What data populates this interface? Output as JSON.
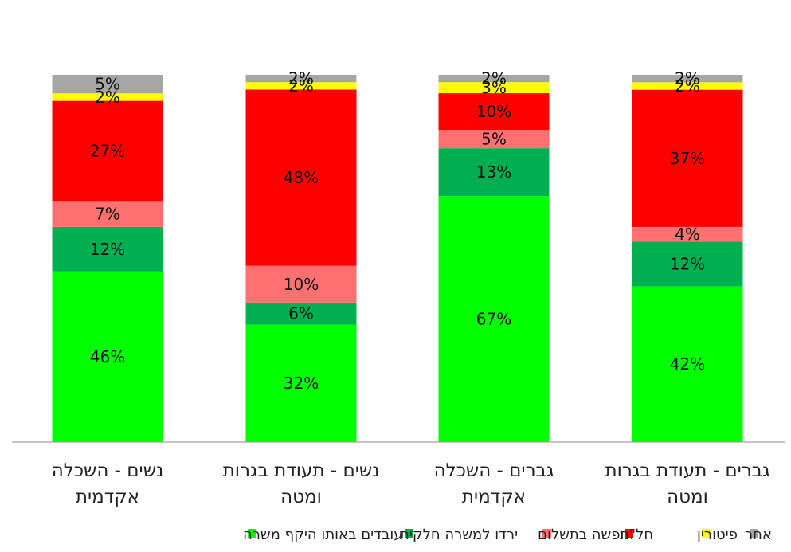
{
  "chart_data": {
    "type": "bar",
    "stacked": true,
    "direction": "rtl",
    "ylim": [
      0,
      100
    ],
    "grid": false,
    "legend_position": "bottom",
    "categories": [
      [
        "גברים - תעודת בגרות",
        "ומטה"
      ],
      [
        "גברים - השכלה",
        "אקדמית"
      ],
      [
        "נשים - תעודת בגרות",
        "ומטה"
      ],
      [
        "נשים - השכלה",
        "אקדמית"
      ]
    ],
    "series": [
      {
        "name": "עובדים באותו היקף משרה",
        "color": "#00ff00",
        "values": [
          42,
          67,
          32,
          46
        ],
        "labels": [
          "42%",
          "67%",
          "32%",
          "46%"
        ]
      },
      {
        "name": "ירדו למשרה חלקית",
        "color": "#00b050",
        "values": [
          12,
          13,
          6,
          12
        ],
        "labels": [
          "12%",
          "13%",
          "6%",
          "12%"
        ]
      },
      {
        "name": "חופשה בתשלום",
        "color": "#ff7070",
        "values": [
          4,
          5,
          10,
          7
        ],
        "labels": [
          "4%",
          "5%",
          "10%",
          "7%"
        ]
      },
      {
        "name": "חל\"ת",
        "color": "#ff0000",
        "values": [
          37,
          10,
          48,
          27
        ],
        "labels": [
          "37%",
          "10%",
          "48%",
          "27%"
        ]
      },
      {
        "name": "פיטורין",
        "color": "#ffff00",
        "values": [
          2,
          3,
          2,
          2
        ],
        "labels": [
          "2%",
          "3%",
          "2%",
          "2%"
        ]
      },
      {
        "name": "אחר",
        "color": "#a6a6a6",
        "values": [
          2,
          2,
          2,
          5
        ],
        "labels": [
          "2%",
          "2%",
          "2%",
          "5%"
        ]
      }
    ]
  }
}
